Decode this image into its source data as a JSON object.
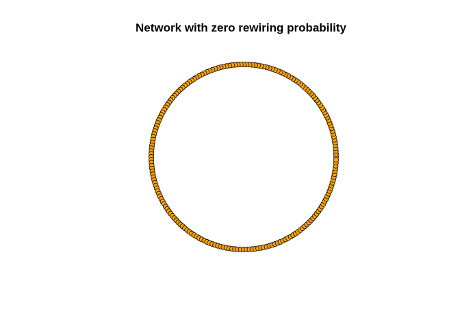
{
  "plot": {
    "title": "Network with zero rewiring probability"
  },
  "network": {
    "layout": "ring",
    "node_count": 200,
    "rewiring_probability": 0,
    "node_color": "#FFA500",
    "node_border_color": "#000000",
    "edge_color": "#000000"
  }
}
